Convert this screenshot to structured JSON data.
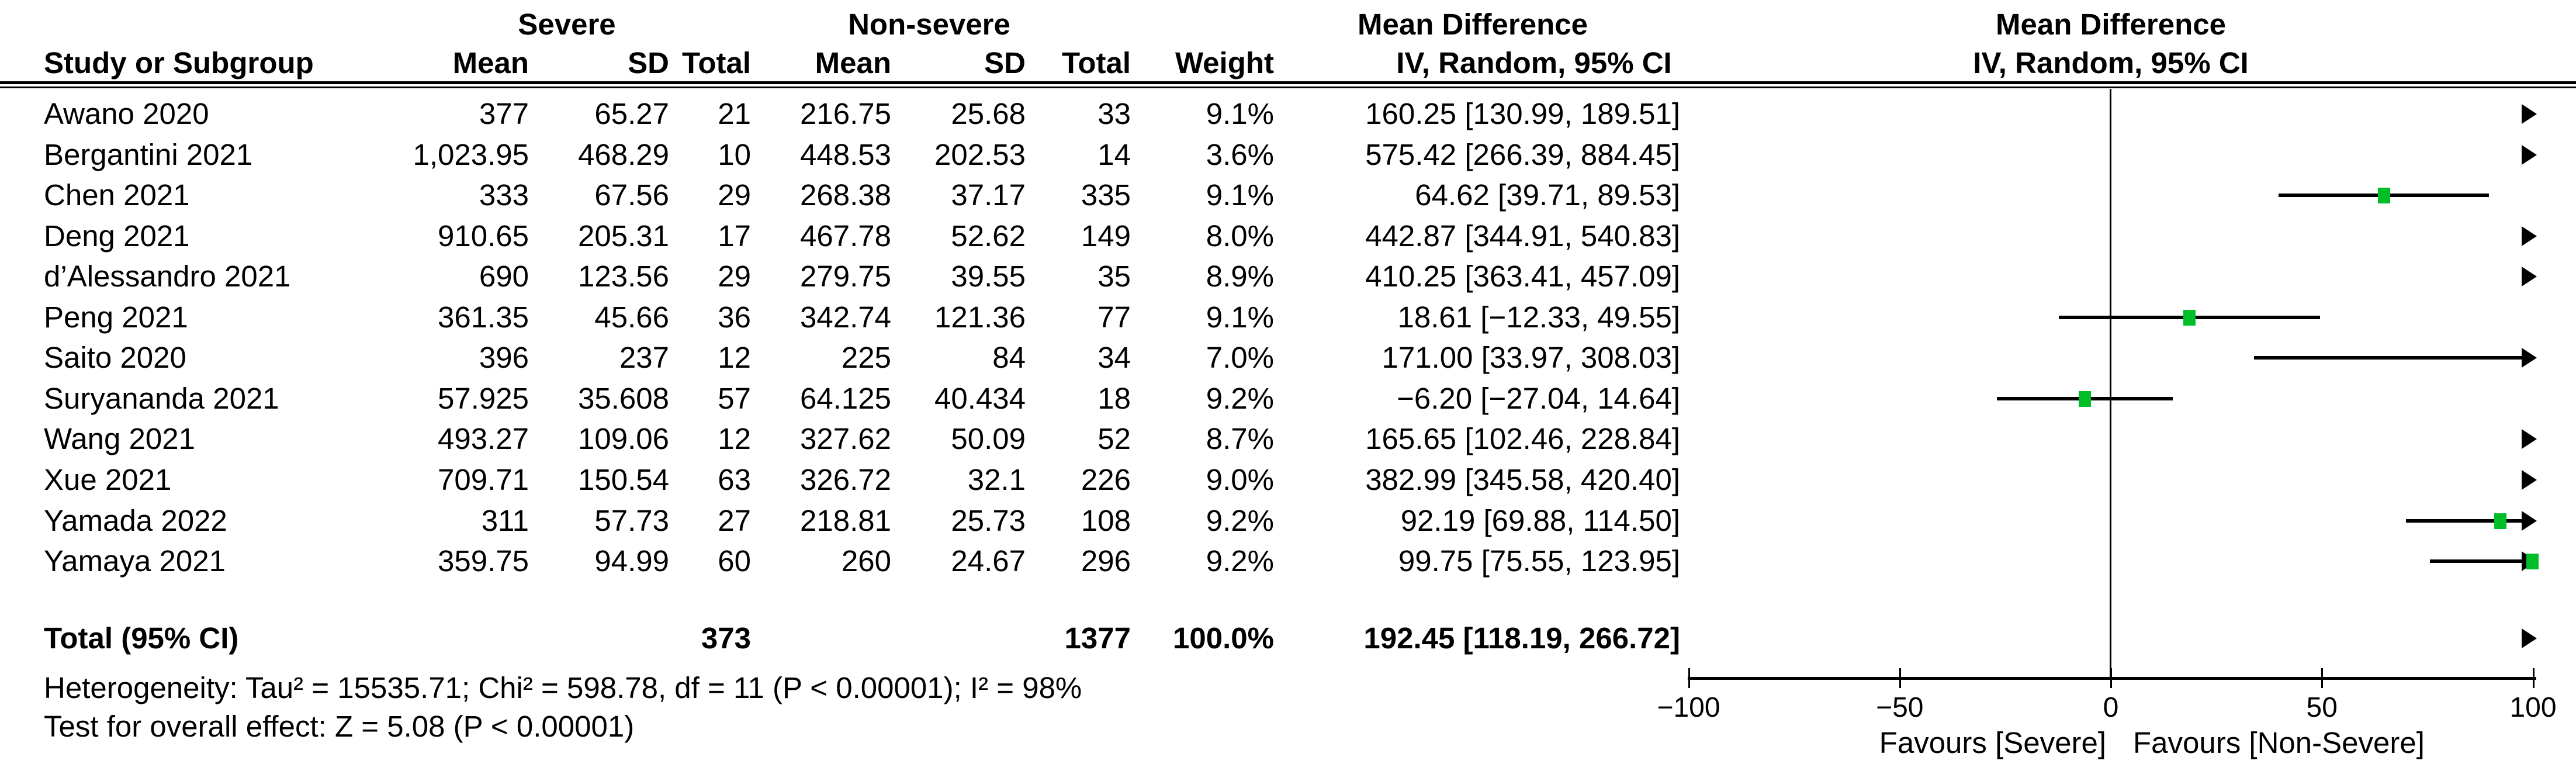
{
  "header": {
    "severe_group": "Severe",
    "nonsevere_group": "Non-severe",
    "study": "Study or Subgroup",
    "mean": "Mean",
    "sd": "SD",
    "total": "Total",
    "weight": "Weight",
    "md_line1": "Mean Difference",
    "md_line2": "IV, Random, 95% CI"
  },
  "footnotes": {
    "heterogeneity": "Heterogeneity: Tau² = 15535.71; Chi² = 598.78, df = 11 (P < 0.00001); I² = 98%",
    "overall_effect": "Test for overall effect: Z = 5.08 (P < 0.00001)"
  },
  "colors": {
    "marker_green": "#00BE28",
    "line_black": "#000000"
  },
  "chart_data": {
    "type": "scatter",
    "subtype": "forest-plot-mean-difference",
    "title": "Mean Difference IV, Random, 95% CI",
    "x_range": [
      -100,
      100
    ],
    "axis": {
      "tick_values": [
        -100,
        -50,
        0,
        50,
        100
      ],
      "tick_labels": [
        "−100",
        "−50",
        "0",
        "50",
        "100"
      ],
      "favours_left": "Favours [Severe]",
      "favours_right": "Favours [Non-Severe]"
    },
    "studies": [
      {
        "name": "Awano 2020",
        "mean1": "377",
        "sd1": "65.27",
        "n1": "21",
        "mean2": "216.75",
        "sd2": "25.68",
        "n2": "33",
        "weight": "9.1%",
        "ci": "160.25 [130.99, 189.51]",
        "est": 160.25,
        "lo": 130.99,
        "hi": 189.51
      },
      {
        "name": "Bergantini 2021",
        "mean1": "1,023.95",
        "sd1": "468.29",
        "n1": "10",
        "mean2": "448.53",
        "sd2": "202.53",
        "n2": "14",
        "weight": "3.6%",
        "ci": "575.42 [266.39, 884.45]",
        "est": 575.42,
        "lo": 266.39,
        "hi": 884.45
      },
      {
        "name": "Chen 2021",
        "mean1": "333",
        "sd1": "67.56",
        "n1": "29",
        "mean2": "268.38",
        "sd2": "37.17",
        "n2": "335",
        "weight": "9.1%",
        "ci": "64.62 [39.71, 89.53]",
        "est": 64.62,
        "lo": 39.71,
        "hi": 89.53
      },
      {
        "name": "Deng 2021",
        "mean1": "910.65",
        "sd1": "205.31",
        "n1": "17",
        "mean2": "467.78",
        "sd2": "52.62",
        "n2": "149",
        "weight": "8.0%",
        "ci": "442.87 [344.91, 540.83]",
        "est": 442.87,
        "lo": 344.91,
        "hi": 540.83
      },
      {
        "name": "d’Alessandro 2021",
        "mean1": "690",
        "sd1": "123.56",
        "n1": "29",
        "mean2": "279.75",
        "sd2": "39.55",
        "n2": "35",
        "weight": "8.9%",
        "ci": "410.25 [363.41, 457.09]",
        "est": 410.25,
        "lo": 363.41,
        "hi": 457.09
      },
      {
        "name": "Peng 2021",
        "mean1": "361.35",
        "sd1": "45.66",
        "n1": "36",
        "mean2": "342.74",
        "sd2": "121.36",
        "n2": "77",
        "weight": "9.1%",
        "ci": "18.61 [−12.33, 49.55]",
        "est": 18.61,
        "lo": -12.33,
        "hi": 49.55
      },
      {
        "name": "Saito 2020",
        "mean1": "396",
        "sd1": "237",
        "n1": "12",
        "mean2": "225",
        "sd2": "84",
        "n2": "34",
        "weight": "7.0%",
        "ci": "171.00 [33.97, 308.03]",
        "est": 171.0,
        "lo": 33.97,
        "hi": 308.03
      },
      {
        "name": "Suryananda 2021",
        "mean1": "57.925",
        "sd1": "35.608",
        "n1": "57",
        "mean2": "64.125",
        "sd2": "40.434",
        "n2": "18",
        "weight": "9.2%",
        "ci": "−6.20 [−27.04, 14.64]",
        "est": -6.2,
        "lo": -27.04,
        "hi": 14.64
      },
      {
        "name": "Wang 2021",
        "mean1": "493.27",
        "sd1": "109.06",
        "n1": "12",
        "mean2": "327.62",
        "sd2": "50.09",
        "n2": "52",
        "weight": "8.7%",
        "ci": "165.65 [102.46, 228.84]",
        "est": 165.65,
        "lo": 102.46,
        "hi": 228.84
      },
      {
        "name": "Xue 2021",
        "mean1": "709.71",
        "sd1": "150.54",
        "n1": "63",
        "mean2": "326.72",
        "sd2": "32.1",
        "n2": "226",
        "weight": "9.0%",
        "ci": "382.99 [345.58, 420.40]",
        "est": 382.99,
        "lo": 345.58,
        "hi": 420.4
      },
      {
        "name": "Yamada 2022",
        "mean1": "311",
        "sd1": "57.73",
        "n1": "27",
        "mean2": "218.81",
        "sd2": "25.73",
        "n2": "108",
        "weight": "9.2%",
        "ci": "92.19 [69.88, 114.50]",
        "est": 92.19,
        "lo": 69.88,
        "hi": 114.5
      },
      {
        "name": "Yamaya 2021",
        "mean1": "359.75",
        "sd1": "94.99",
        "n1": "60",
        "mean2": "260",
        "sd2": "24.67",
        "n2": "296",
        "weight": "9.2%",
        "ci": "99.75 [75.55, 123.95]",
        "est": 99.75,
        "lo": 75.55,
        "hi": 123.95
      }
    ],
    "total": {
      "label": "Total (95% CI)",
      "n1": "373",
      "n2": "1377",
      "weight": "100.0%",
      "ci": "192.45 [118.19, 266.72]",
      "est": 192.45,
      "lo": 118.19,
      "hi": 266.72
    }
  }
}
